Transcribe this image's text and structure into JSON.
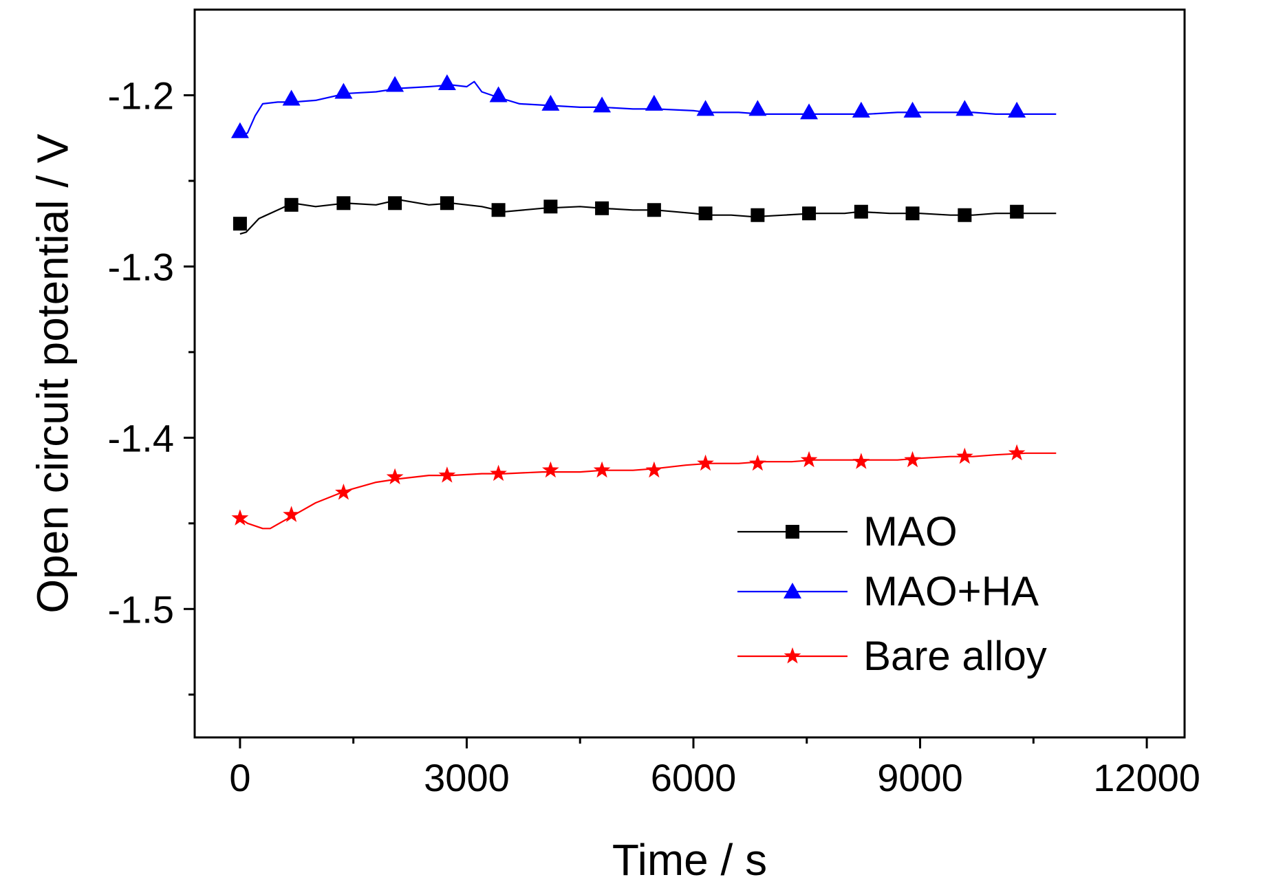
{
  "chart_data": {
    "type": "line",
    "title": "",
    "xlabel": "Time / s",
    "ylabel": "Open circuit potential / V",
    "xlim": [
      -600,
      12500
    ],
    "ylim": [
      -1.575,
      -1.15
    ],
    "x_ticks": [
      0,
      3000,
      6000,
      9000,
      12000
    ],
    "x_tick_labels": [
      "0",
      "3000",
      "6000",
      "9000",
      "12000"
    ],
    "x_minor_ticks": [
      1500,
      4500,
      7500,
      10500
    ],
    "y_ticks": [
      -1.2,
      -1.3,
      -1.4,
      -1.5
    ],
    "y_tick_labels": [
      "-1.2",
      "-1.3",
      "-1.4",
      "-1.5"
    ],
    "y_minor_ticks": [
      -1.25,
      -1.35,
      -1.45,
      -1.55
    ],
    "grid": false,
    "legend_position": "bottom-right",
    "series": [
      {
        "name": "MAO",
        "color": "#000000",
        "marker": "square",
        "line": [
          [
            0,
            -1.281
          ],
          [
            80,
            -1.28
          ],
          [
            250,
            -1.272
          ],
          [
            500,
            -1.267
          ],
          [
            700,
            -1.263
          ],
          [
            1000,
            -1.265
          ],
          [
            1400,
            -1.263
          ],
          [
            1800,
            -1.264
          ],
          [
            2100,
            -1.261
          ],
          [
            2500,
            -1.264
          ],
          [
            2800,
            -1.263
          ],
          [
            3200,
            -1.265
          ],
          [
            3500,
            -1.268
          ],
          [
            4000,
            -1.266
          ],
          [
            4500,
            -1.265
          ],
          [
            4800,
            -1.266
          ],
          [
            5200,
            -1.267
          ],
          [
            5500,
            -1.267
          ],
          [
            6000,
            -1.269
          ],
          [
            6200,
            -1.27
          ],
          [
            6500,
            -1.27
          ],
          [
            6800,
            -1.271
          ],
          [
            7200,
            -1.27
          ],
          [
            7600,
            -1.269
          ],
          [
            8000,
            -1.269
          ],
          [
            8200,
            -1.268
          ],
          [
            8600,
            -1.269
          ],
          [
            9000,
            -1.269
          ],
          [
            9400,
            -1.27
          ],
          [
            9700,
            -1.27
          ],
          [
            10000,
            -1.269
          ],
          [
            10400,
            -1.269
          ],
          [
            10800,
            -1.269
          ]
        ],
        "markers": [
          [
            0,
            -1.275
          ],
          [
            680,
            -1.264
          ],
          [
            1370,
            -1.263
          ],
          [
            2050,
            -1.263
          ],
          [
            2740,
            -1.263
          ],
          [
            3420,
            -1.267
          ],
          [
            4110,
            -1.265
          ],
          [
            4790,
            -1.266
          ],
          [
            5480,
            -1.267
          ],
          [
            6160,
            -1.269
          ],
          [
            6850,
            -1.27
          ],
          [
            7530,
            -1.269
          ],
          [
            8220,
            -1.268
          ],
          [
            8900,
            -1.269
          ],
          [
            9590,
            -1.27
          ],
          [
            10280,
            -1.268
          ]
        ]
      },
      {
        "name": "MAO+HA",
        "color": "#0000ff",
        "marker": "triangle",
        "line": [
          [
            0,
            -1.224
          ],
          [
            100,
            -1.222
          ],
          [
            200,
            -1.212
          ],
          [
            300,
            -1.205
          ],
          [
            500,
            -1.204
          ],
          [
            700,
            -1.204
          ],
          [
            1000,
            -1.203
          ],
          [
            1400,
            -1.199
          ],
          [
            1800,
            -1.198
          ],
          [
            2100,
            -1.196
          ],
          [
            2500,
            -1.195
          ],
          [
            2800,
            -1.194
          ],
          [
            3000,
            -1.195
          ],
          [
            3100,
            -1.192
          ],
          [
            3200,
            -1.198
          ],
          [
            3400,
            -1.201
          ],
          [
            3700,
            -1.205
          ],
          [
            4100,
            -1.206
          ],
          [
            4500,
            -1.207
          ],
          [
            4800,
            -1.207
          ],
          [
            5200,
            -1.208
          ],
          [
            5500,
            -1.208
          ],
          [
            6000,
            -1.209
          ],
          [
            6200,
            -1.21
          ],
          [
            6600,
            -1.21
          ],
          [
            6900,
            -1.211
          ],
          [
            7300,
            -1.211
          ],
          [
            7600,
            -1.211
          ],
          [
            8000,
            -1.211
          ],
          [
            8300,
            -1.211
          ],
          [
            8700,
            -1.21
          ],
          [
            9000,
            -1.21
          ],
          [
            9400,
            -1.21
          ],
          [
            9700,
            -1.21
          ],
          [
            10000,
            -1.211
          ],
          [
            10400,
            -1.211
          ],
          [
            10800,
            -1.211
          ]
        ],
        "markers": [
          [
            0,
            -1.221
          ],
          [
            680,
            -1.202
          ],
          [
            1370,
            -1.198
          ],
          [
            2050,
            -1.194
          ],
          [
            2740,
            -1.193
          ],
          [
            3420,
            -1.2
          ],
          [
            4110,
            -1.205
          ],
          [
            4790,
            -1.206
          ],
          [
            5480,
            -1.205
          ],
          [
            6160,
            -1.208
          ],
          [
            6850,
            -1.208
          ],
          [
            7530,
            -1.21
          ],
          [
            8220,
            -1.209
          ],
          [
            8900,
            -1.209
          ],
          [
            9590,
            -1.208
          ],
          [
            10280,
            -1.209
          ]
        ]
      },
      {
        "name": "Bare alloy",
        "color": "#ff0000",
        "marker": "star",
        "line": [
          [
            0,
            -1.447
          ],
          [
            100,
            -1.45
          ],
          [
            300,
            -1.453
          ],
          [
            400,
            -1.453
          ],
          [
            600,
            -1.448
          ],
          [
            800,
            -1.443
          ],
          [
            1000,
            -1.438
          ],
          [
            1400,
            -1.431
          ],
          [
            1800,
            -1.426
          ],
          [
            2100,
            -1.424
          ],
          [
            2500,
            -1.422
          ],
          [
            2800,
            -1.422
          ],
          [
            3200,
            -1.421
          ],
          [
            3500,
            -1.421
          ],
          [
            4000,
            -1.42
          ],
          [
            4500,
            -1.42
          ],
          [
            4800,
            -1.419
          ],
          [
            5200,
            -1.419
          ],
          [
            5500,
            -1.418
          ],
          [
            5900,
            -1.416
          ],
          [
            6200,
            -1.415
          ],
          [
            6600,
            -1.415
          ],
          [
            6900,
            -1.414
          ],
          [
            7300,
            -1.414
          ],
          [
            7600,
            -1.413
          ],
          [
            8000,
            -1.413
          ],
          [
            8300,
            -1.413
          ],
          [
            8700,
            -1.413
          ],
          [
            9000,
            -1.412
          ],
          [
            9400,
            -1.411
          ],
          [
            9700,
            -1.411
          ],
          [
            10000,
            -1.41
          ],
          [
            10400,
            -1.409
          ],
          [
            10800,
            -1.409
          ]
        ],
        "markers": [
          [
            0,
            -1.447
          ],
          [
            680,
            -1.445
          ],
          [
            1370,
            -1.432
          ],
          [
            2050,
            -1.423
          ],
          [
            2740,
            -1.422
          ],
          [
            3420,
            -1.421
          ],
          [
            4110,
            -1.419
          ],
          [
            4790,
            -1.419
          ],
          [
            5480,
            -1.419
          ],
          [
            6160,
            -1.415
          ],
          [
            6850,
            -1.415
          ],
          [
            7530,
            -1.413
          ],
          [
            8220,
            -1.414
          ],
          [
            8900,
            -1.413
          ],
          [
            9590,
            -1.411
          ],
          [
            10280,
            -1.409
          ]
        ]
      }
    ]
  }
}
